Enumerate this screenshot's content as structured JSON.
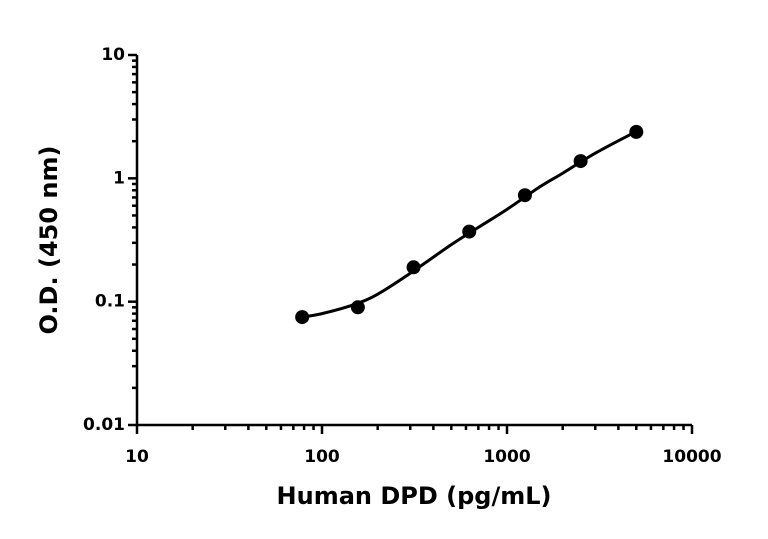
{
  "chart_data": {
    "type": "scatter",
    "x_label": "Human DPD (pg/mL)",
    "y_label": "O.D. (450 nm)",
    "x": [
      78.125,
      156.25,
      312.5,
      625,
      1250,
      2500,
      5000
    ],
    "values": [
      0.075,
      0.09,
      0.19,
      0.37,
      0.73,
      1.38,
      2.38
    ],
    "color": "#000000",
    "curve": {
      "x": [
        78,
        100,
        150,
        200,
        300,
        500,
        700,
        1000,
        1500,
        2000,
        3000,
        5000
      ],
      "values": [
        0.075,
        0.08,
        0.095,
        0.115,
        0.17,
        0.29,
        0.4,
        0.56,
        0.85,
        1.1,
        1.6,
        2.4
      ]
    },
    "x_log": true,
    "y_log": true,
    "xlim": [
      10,
      10000
    ],
    "ylim": [
      0.01,
      10
    ],
    "xticks": [
      10,
      100,
      1000,
      10000
    ],
    "yticks": [
      0.01,
      0.1,
      1,
      10
    ],
    "x_minor_ticks": [
      20,
      30,
      40,
      50,
      60,
      70,
      80,
      90,
      200,
      300,
      400,
      500,
      600,
      700,
      800,
      900,
      2000,
      3000,
      4000,
      5000,
      6000,
      7000,
      8000,
      9000
    ],
    "y_minor_ticks": [
      0.02,
      0.03,
      0.04,
      0.05,
      0.06,
      0.07,
      0.08,
      0.09,
      0.2,
      0.3,
      0.4,
      0.5,
      0.6,
      0.7,
      0.8,
      0.9,
      2,
      3,
      4,
      5,
      6,
      7,
      8,
      9
    ]
  }
}
